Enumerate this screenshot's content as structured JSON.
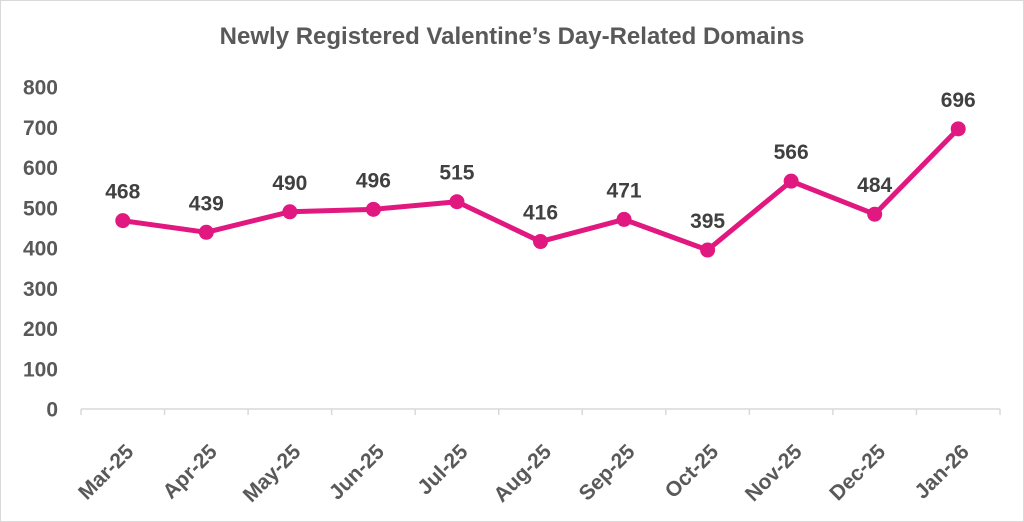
{
  "chart_data": {
    "type": "line",
    "title": "Newly Registered Valentine’s Day-Related Domains",
    "categories": [
      "Mar-25",
      "Apr-25",
      "May-25",
      "Jun-25",
      "Jul-25",
      "Aug-25",
      "Sep-25",
      "Oct-25",
      "Nov-25",
      "Dec-25",
      "Jan-26"
    ],
    "values": [
      468,
      439,
      490,
      496,
      515,
      416,
      471,
      395,
      566,
      484,
      696
    ],
    "xlabel": "",
    "ylabel": "",
    "ylim": [
      0,
      800
    ],
    "ytick_step": 100,
    "yticks": [
      "0",
      "100",
      "200",
      "300",
      "400",
      "500",
      "600",
      "700",
      "800"
    ],
    "grid": false,
    "legend": "none",
    "data_labels": true,
    "colors": {
      "line": "#E0187F",
      "marker": "#E0187F",
      "title_text": "#595959",
      "axis_text": "#595959",
      "value_label_text": "#404040",
      "axis_line": "#D9D9D9",
      "border": "#D9D9D9",
      "background": "#FFFFFF"
    }
  }
}
